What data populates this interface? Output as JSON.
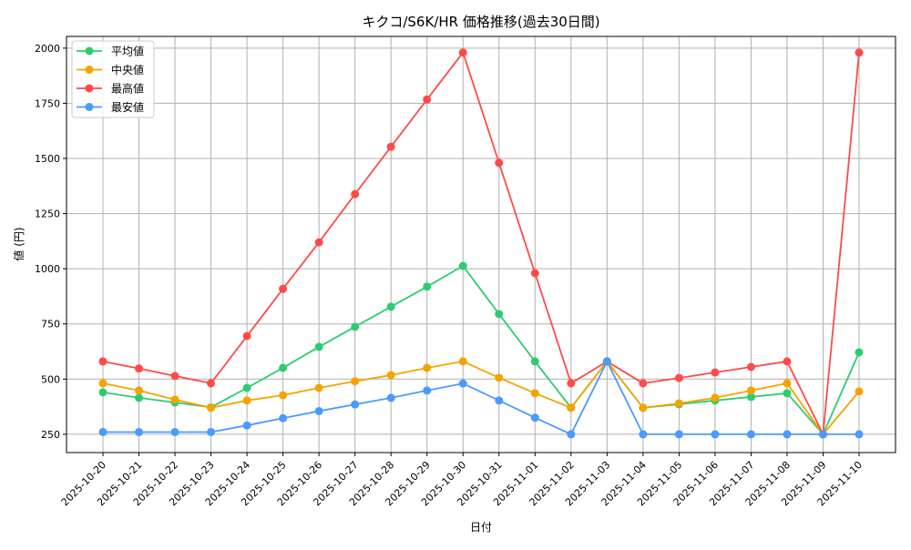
{
  "chart_data": {
    "type": "line",
    "title": "キクコ/S6K/HR 価格推移(過去30日間)",
    "xlabel": "日付",
    "ylabel": "値 (円)",
    "ylim": [
      167,
      2053
    ],
    "yticks": [
      250,
      500,
      750,
      1000,
      1250,
      1500,
      1750,
      2000
    ],
    "grid": true,
    "legend": "top-left",
    "categories": [
      "2025-10-20",
      "2025-10-21",
      "2025-10-22",
      "2025-10-23",
      "2025-10-24",
      "2025-10-25",
      "2025-10-26",
      "2025-10-27",
      "2025-10-28",
      "2025-10-29",
      "2025-10-30",
      "2025-10-31",
      "2025-11-01",
      "2025-11-02",
      "2025-11-03",
      "2025-11-04",
      "2025-11-05",
      "2025-11-06",
      "2025-11-07",
      "2025-11-08",
      "2025-11-09",
      "2025-11-10"
    ],
    "series": [
      {
        "name": "平均値",
        "color": "#2ecc71",
        "values": [
          440,
          415,
          394,
          372,
          460,
          551,
          646,
          737,
          828,
          919,
          1013,
          795,
          580,
          370,
          580,
          370,
          386,
          403,
          419,
          436,
          250,
          621
        ]
      },
      {
        "name": "中央値",
        "color": "#f5a300",
        "values": [
          481,
          448,
          407,
          370,
          403,
          427,
          460,
          490,
          518,
          551,
          580,
          506,
          436,
          370,
          580,
          370,
          390,
          415,
          448,
          481,
          250,
          444
        ]
      },
      {
        "name": "最高値",
        "color": "#ff4a4a",
        "values": [
          580,
          548,
          514,
          481,
          695,
          909,
          1120,
          1338,
          1553,
          1767,
          1980,
          1480,
          980,
          481,
          580,
          481,
          505,
          530,
          555,
          580,
          250,
          1980
        ]
      },
      {
        "name": "最安値",
        "color": "#4a9aff",
        "values": [
          260,
          260,
          260,
          260,
          290,
          323,
          355,
          385,
          415,
          448,
          480,
          403,
          325,
          250,
          580,
          250,
          250,
          250,
          250,
          250,
          250,
          250
        ]
      }
    ]
  }
}
